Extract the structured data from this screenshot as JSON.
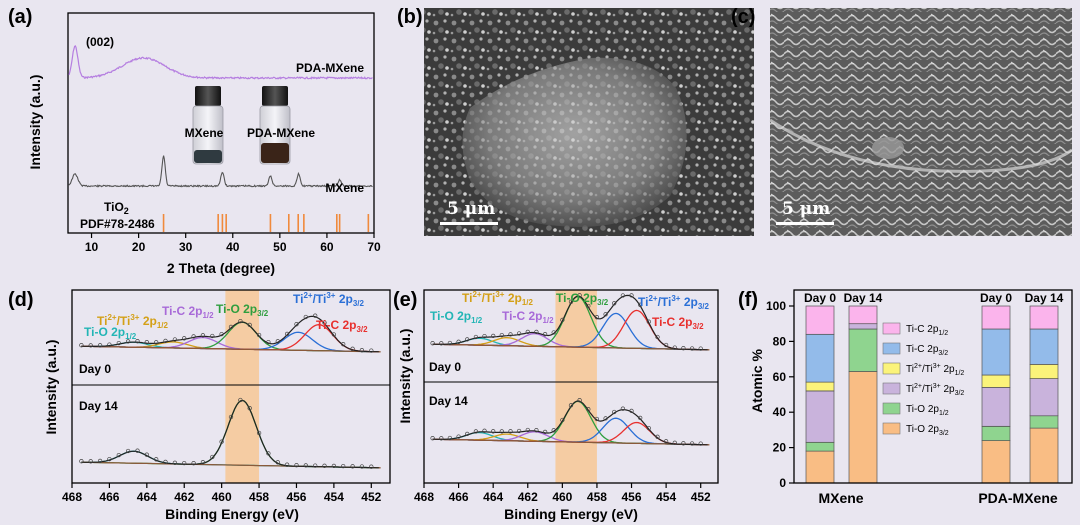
{
  "panels": {
    "a": {
      "label": "(a)"
    },
    "b": {
      "label": "(b)",
      "scale_bar": "5 μm"
    },
    "c": {
      "label": "(c)",
      "scale_bar": "5 μm"
    },
    "d": {
      "label": "(d)"
    },
    "e": {
      "label": "(e)"
    },
    "f": {
      "label": "(f)"
    }
  },
  "chart_data": [
    {
      "id": "a",
      "type": "line",
      "xlabel": "2 Theta (degree)",
      "ylabel": "Intensity (a.u.)",
      "xlim": [
        5,
        70
      ],
      "xticks": [
        10,
        20,
        30,
        40,
        50,
        60,
        70
      ],
      "annotations": {
        "peak": "(002)",
        "ref_line1": "TiO",
        "ref_sub": "2",
        "ref_line2": "PDF#78-2486",
        "vial1": "MXene",
        "vial2": "PDA-MXene"
      },
      "series": [
        {
          "name": "PDA-MXene",
          "color": "#b57ee0",
          "peaks": [
            [
              6.5,
              32
            ],
            [
              21,
              20
            ]
          ]
        },
        {
          "name": "MXene",
          "color": "#555555",
          "peaks": [
            [
              6.5,
              12
            ],
            [
              25.3,
              30
            ],
            [
              37.8,
              14
            ],
            [
              48,
              10
            ],
            [
              54,
              12
            ],
            [
              62.7,
              6
            ]
          ]
        }
      ],
      "reference_lines": [
        25.3,
        36.9,
        37.8,
        38.6,
        48.0,
        51.9,
        53.9,
        55.1,
        62.1,
        62.7,
        68.8
      ],
      "reference_color": "#f08a3c"
    },
    {
      "id": "d",
      "type": "line",
      "xlabel": "Binding Energy (eV)",
      "ylabel": "Intensity (a.u.)",
      "xlim": [
        468,
        451
      ],
      "xticks": [
        468,
        466,
        464,
        462,
        460,
        458,
        456,
        454,
        452
      ],
      "highlight": [
        459.8,
        458.0
      ],
      "labels": {
        "top": "Day 0",
        "bottom": "Day 14"
      },
      "components": [
        {
          "name": "Ti-O 2p1/2",
          "color": "#22b5b5"
        },
        {
          "name": "Ti2+/Ti3+ 2p1/2",
          "color": "#d4a017"
        },
        {
          "name": "Ti-C 2p1/2",
          "color": "#a86ad8"
        },
        {
          "name": "Ti-O 2p3/2",
          "color": "#2e9e3e"
        },
        {
          "name": "Ti2+/Ti3+ 2p3/2",
          "color": "#2a6fd6"
        },
        {
          "name": "Ti-C 2p3/2",
          "color": "#e8302e"
        }
      ],
      "day0_peaks": [
        [
          464.7,
          5
        ],
        [
          462.6,
          6
        ],
        [
          461.0,
          11
        ],
        [
          458.9,
          27
        ],
        [
          455.9,
          18
        ],
        [
          454.8,
          26
        ]
      ],
      "day14_peaks": [
        [
          464.7,
          10
        ],
        [
          458.9,
          54
        ]
      ]
    },
    {
      "id": "e",
      "type": "line",
      "xlabel": "Binding Energy (eV)",
      "ylabel": "Intensity (a.u.)",
      "xlim": [
        468,
        451
      ],
      "xticks": [
        468,
        466,
        464,
        462,
        460,
        458,
        456,
        454,
        452
      ],
      "highlight": [
        460.4,
        458.0
      ],
      "labels": {
        "top": "Day 0",
        "bottom": "Day 14"
      },
      "components": [
        {
          "name": "Ti-O 2p1/2",
          "color": "#22b5b5"
        },
        {
          "name": "Ti2+/Ti3+ 2p1/2",
          "color": "#d4a017"
        },
        {
          "name": "Ti-C 2p1/2",
          "color": "#a86ad8"
        },
        {
          "name": "Ti-O 2p3/2",
          "color": "#2e9e3e"
        },
        {
          "name": "Ti2+/Ti3+ 2p3/2",
          "color": "#2a6fd6"
        },
        {
          "name": "Ti-C 2p3/2",
          "color": "#e8302e"
        }
      ],
      "day0_peaks": [
        [
          464.8,
          6
        ],
        [
          463.2,
          7
        ],
        [
          461.6,
          11
        ],
        [
          459.1,
          44
        ],
        [
          456.9,
          30
        ],
        [
          455.7,
          33
        ]
      ],
      "day14_peaks": [
        [
          464.8,
          8
        ],
        [
          463.2,
          7
        ],
        [
          461.6,
          10
        ],
        [
          459.1,
          43
        ],
        [
          456.9,
          26
        ],
        [
          455.7,
          22
        ]
      ]
    },
    {
      "id": "f",
      "type": "bar",
      "stacked": true,
      "ylabel": "Atomic %",
      "ylim": [
        0,
        100
      ],
      "yticks": [
        0,
        20,
        40,
        60,
        80,
        100
      ],
      "groups": [
        "MXene",
        "PDA-MXene"
      ],
      "bar_labels": [
        "Day 0",
        "Day 14",
        "Day 0",
        "Day 14"
      ],
      "series": [
        {
          "name": "Ti-O 2p3/2",
          "color": "#f9bd84",
          "values": [
            18,
            63,
            24,
            31
          ]
        },
        {
          "name": "Ti-O 2p1/2",
          "color": "#8fd48f",
          "values": [
            5,
            24,
            8,
            7
          ]
        },
        {
          "name": "Ti2+/Ti3+ 2p3/2",
          "color": "#c9b3dc",
          "values": [
            29,
            3,
            22,
            21
          ]
        },
        {
          "name": "Ti2+/Ti3+ 2p1/2",
          "color": "#fbf37a",
          "values": [
            5,
            0,
            7,
            8
          ]
        },
        {
          "name": "Ti-C 2p3/2",
          "color": "#93bbea",
          "values": [
            27,
            0,
            26,
            20
          ]
        },
        {
          "name": "Ti-C 2p1/2",
          "color": "#fbb4ec",
          "values": [
            16,
            10,
            13,
            13
          ]
        }
      ]
    }
  ]
}
